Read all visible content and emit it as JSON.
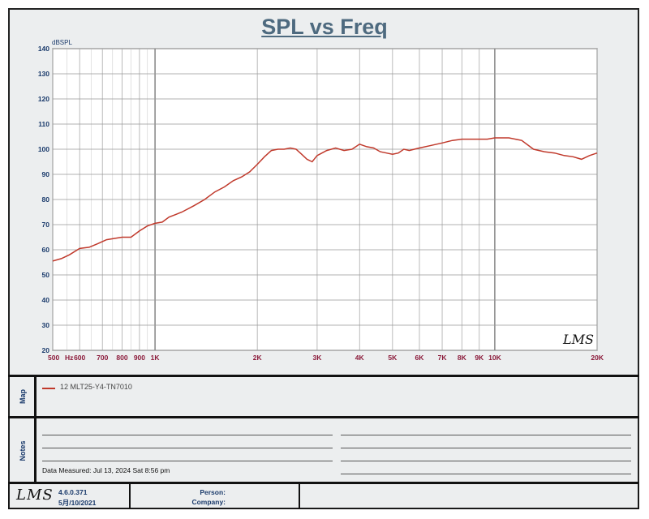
{
  "chart_data": {
    "type": "line",
    "title": "SPL vs Freq",
    "ylabel": "dBSPL",
    "xlabel": "",
    "x_scale": "log",
    "xlim": [
      500,
      20000
    ],
    "ylim": [
      20,
      140
    ],
    "yticks": [
      20,
      30,
      40,
      50,
      60,
      70,
      80,
      90,
      100,
      110,
      120,
      130,
      140
    ],
    "xtick_labels": [
      {
        "v": 500,
        "t": "500"
      },
      {
        "v": 600,
        "t": "600"
      },
      {
        "v": 700,
        "t": "700"
      },
      {
        "v": 800,
        "t": "800"
      },
      {
        "v": 900,
        "t": "900"
      },
      {
        "v": 1000,
        "t": "1K"
      },
      {
        "v": 2000,
        "t": "2K"
      },
      {
        "v": 3000,
        "t": "3K"
      },
      {
        "v": 4000,
        "t": "4K"
      },
      {
        "v": 5000,
        "t": "5K"
      },
      {
        "v": 6000,
        "t": "6K"
      },
      {
        "v": 7000,
        "t": "7K"
      },
      {
        "v": 8000,
        "t": "8K"
      },
      {
        "v": 9000,
        "t": "9K"
      },
      {
        "v": 10000,
        "t": "10K"
      },
      {
        "v": 20000,
        "t": "20K"
      }
    ],
    "hz_label": "Hz",
    "grid": true,
    "series": [
      {
        "name": "12  MLT25-Y4-TN7010",
        "color": "#c0392b",
        "x": [
          500,
          530,
          560,
          600,
          640,
          680,
          720,
          760,
          800,
          850,
          900,
          950,
          1000,
          1050,
          1100,
          1150,
          1200,
          1300,
          1400,
          1500,
          1600,
          1700,
          1800,
          1900,
          2000,
          2100,
          2200,
          2300,
          2400,
          2500,
          2600,
          2700,
          2800,
          2900,
          3000,
          3100,
          3200,
          3400,
          3600,
          3800,
          4000,
          4200,
          4400,
          4600,
          4800,
          5000,
          5200,
          5400,
          5600,
          5800,
          6000,
          6500,
          7000,
          7500,
          8000,
          8500,
          9000,
          9500,
          10000,
          10500,
          11000,
          12000,
          13000,
          14000,
          15000,
          16000,
          17000,
          17500,
          18000,
          19000,
          20000
        ],
        "y": [
          55.5,
          56.5,
          58,
          60.5,
          61,
          62.5,
          64,
          64.5,
          65,
          65,
          67.5,
          69.5,
          70.5,
          71,
          73,
          74,
          75,
          77.5,
          80,
          83,
          85,
          87.5,
          89,
          91,
          94,
          97,
          99.5,
          100,
          100,
          100.5,
          100,
          98,
          96,
          95,
          97.5,
          98.5,
          99.5,
          100.5,
          99.5,
          100,
          102,
          101,
          100.5,
          99,
          98.5,
          98,
          98.5,
          100,
          99.5,
          100,
          100.5,
          101.5,
          102.5,
          103.5,
          104,
          104,
          104,
          104,
          104.5,
          104.5,
          104.5,
          103.5,
          100,
          99,
          98.5,
          97.5,
          97,
          96.5,
          96,
          97.5,
          98.5
        ]
      }
    ]
  },
  "panels": {
    "map_label": "Map",
    "notes_label": "Notes",
    "legend_text": "12  MLT25-Y4-TN7010",
    "data_measured": "Data Measured:  Jul 13, 2024  Sat  8:56 pm"
  },
  "footer": {
    "logo": "LMS",
    "version": "4.6.0.371",
    "date": "5月/10/2021",
    "person_label": "Person:",
    "company_label": "Company:"
  },
  "watermark": "LMS"
}
